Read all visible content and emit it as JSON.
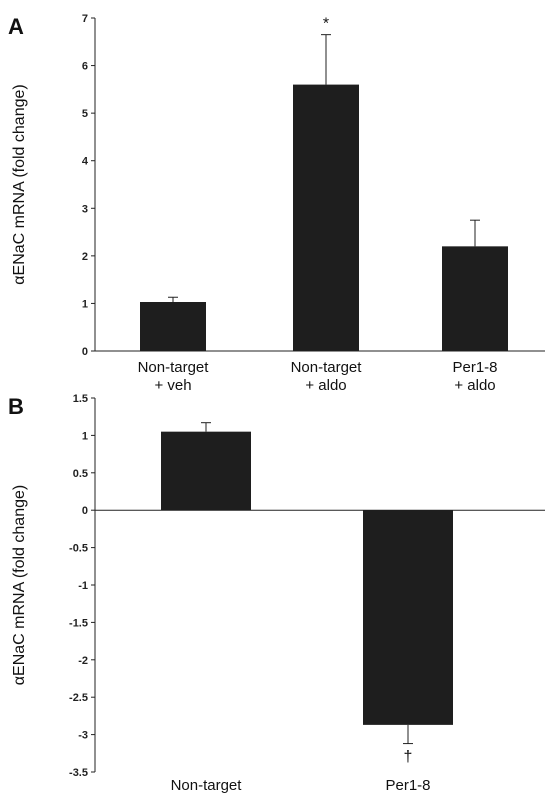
{
  "chart_data": [
    {
      "type": "bar",
      "panel": "A",
      "ylabel": "αENaC mRNA (fold change)",
      "ylim": [
        0,
        7
      ],
      "yticks": [
        "0",
        "1",
        "2",
        "3",
        "4",
        "5",
        "6",
        "7"
      ],
      "categories": [
        [
          "Non-target",
          "+ veh"
        ],
        [
          "Non-target",
          "+ aldo"
        ],
        [
          "Per1-8",
          "+ aldo"
        ]
      ],
      "values": [
        1.03,
        5.6,
        2.2
      ],
      "errors": [
        0.1,
        1.05,
        0.55
      ],
      "annotations": [
        "",
        "*",
        ""
      ],
      "color": "#1e1e1e"
    },
    {
      "type": "bar",
      "panel": "B",
      "ylabel": "αENaC mRNA (fold change)",
      "ylim": [
        -3.5,
        1.5
      ],
      "yticks": [
        "1.5",
        "1",
        "0.5",
        "0",
        "-0.5",
        "-1",
        "-1.5",
        "-2",
        "-2.5",
        "-3",
        "-3.5"
      ],
      "categories": [
        [
          "Non-target"
        ],
        [
          "Per1-8"
        ]
      ],
      "values": [
        1.05,
        -2.87
      ],
      "errors": [
        0.12,
        0.25
      ],
      "annotations": [
        "",
        "†"
      ],
      "color": "#1e1e1e"
    }
  ]
}
